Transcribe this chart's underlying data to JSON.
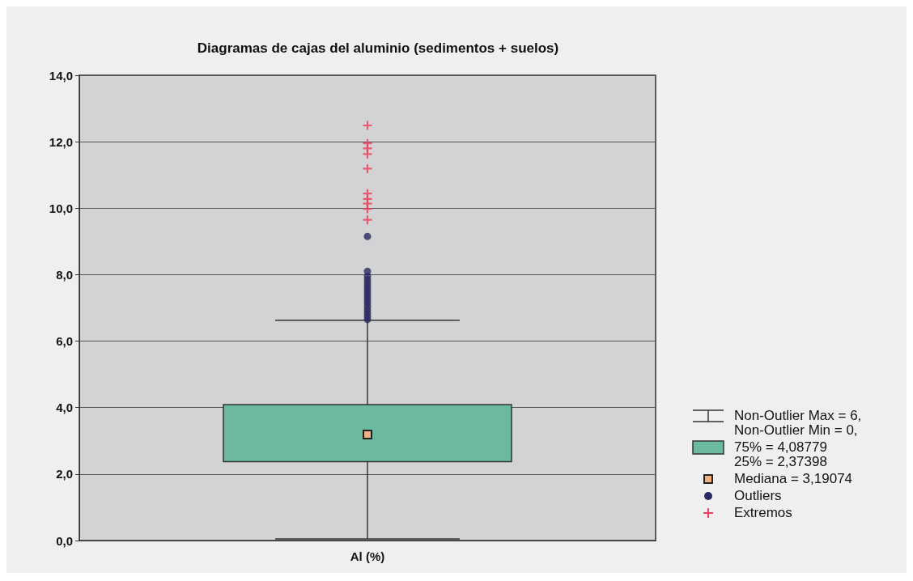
{
  "chart_data": {
    "type": "box",
    "title": "Diagramas de cajas del aluminio (sedimentos + suelos)",
    "categories": [
      "Al (%)"
    ],
    "ylim": [
      0,
      14
    ],
    "yticks": [
      {
        "value": 0,
        "label": "0,0"
      },
      {
        "value": 2,
        "label": "2,0"
      },
      {
        "value": 4,
        "label": "4,0"
      },
      {
        "value": 6,
        "label": "6,0"
      },
      {
        "value": 8,
        "label": "8,0"
      },
      {
        "value": 10,
        "label": "10,0"
      },
      {
        "value": 12,
        "label": "12,0"
      },
      {
        "value": 14,
        "label": "14,0"
      }
    ],
    "grid": "y",
    "legend": "right",
    "annotations": [
      "Non-Outlier Max = 6,",
      "Non-Outlier Min = 0,",
      "75% = 4,08779",
      "25% = 2,37398",
      "Mediana = 3,19074"
    ],
    "series": [
      {
        "type": "box",
        "color": "#6ab9a0",
        "boxes": [
          {
            "low": 0.05,
            "q1": 2.37398,
            "median": 3.19074,
            "q3": 4.08779,
            "high": 6.63
          }
        ]
      },
      {
        "type": "scatter",
        "name": "Outliers",
        "color": "#2a2a60",
        "marker": "circle",
        "x": [
          "Al (%)",
          "Al (%)",
          "Al (%)",
          "Al (%)",
          "Al (%)",
          "Al (%)",
          "Al (%)",
          "Al (%)",
          "Al (%)",
          "Al (%)",
          "Al (%)",
          "Al (%)",
          "Al (%)",
          "Al (%)",
          "Al (%)",
          "Al (%)"
        ],
        "values": [
          6.65,
          6.75,
          6.85,
          6.95,
          7.05,
          7.15,
          7.25,
          7.35,
          7.45,
          7.55,
          7.65,
          7.75,
          7.85,
          7.95,
          8.1,
          9.15
        ]
      },
      {
        "type": "scatter",
        "name": "Extremos",
        "color": "#e8405a",
        "marker": "cross",
        "x": [
          "Al (%)",
          "Al (%)",
          "Al (%)",
          "Al (%)",
          "Al (%)",
          "Al (%)",
          "Al (%)",
          "Al (%)",
          "Al (%)",
          "Al (%)"
        ],
        "values": [
          9.65,
          9.98,
          10.14,
          10.28,
          10.44,
          11.19,
          11.63,
          11.8,
          11.95,
          12.49
        ]
      }
    ]
  }
}
